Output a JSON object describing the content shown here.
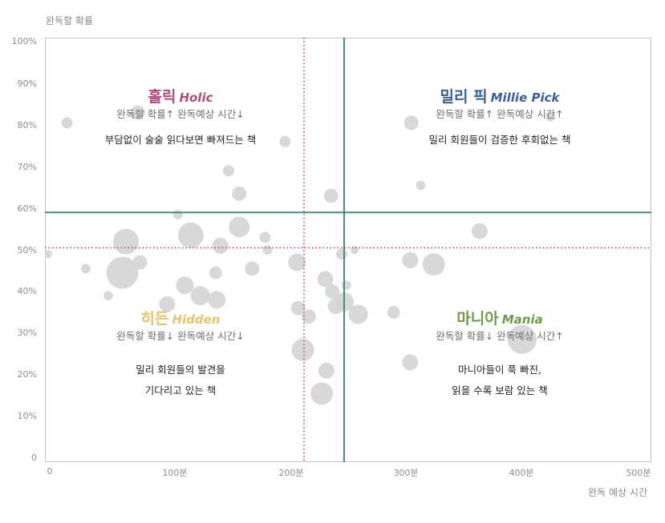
{
  "chart_data": {
    "type": "scatter",
    "subtype": "bubble",
    "title": "",
    "xlabel": "완독 예상 시간",
    "ylabel": "완독할 확률",
    "xlim": [
      0,
      500
    ],
    "ylim": [
      0,
      100
    ],
    "x_ticks": [
      "0",
      "100분",
      "200분",
      "300분",
      "400분",
      "500분"
    ],
    "y_ticks": [
      "0",
      "10%",
      "20%",
      "30%",
      "40%",
      "50%",
      "60%",
      "70%",
      "80%",
      "90%",
      "100%"
    ],
    "grid": false,
    "reference_lines": [
      {
        "orientation": "vertical",
        "value": 251,
        "style": "solid",
        "color": "#4a8a7e"
      },
      {
        "orientation": "horizontal",
        "value": 59,
        "style": "solid",
        "color": "#4a8a7e"
      },
      {
        "orientation": "vertical",
        "value": 217,
        "style": "dotted",
        "color": "#c0394f"
      },
      {
        "orientation": "horizontal",
        "value": 50.5,
        "style": "dotted",
        "color": "#c0394f"
      }
    ],
    "bubble_color": "#d4d4d4",
    "points": [
      {
        "x": 16,
        "y": 80.5,
        "r": 7
      },
      {
        "x": 76,
        "y": 83,
        "r": 9
      },
      {
        "x": 201,
        "y": 76,
        "r": 7
      },
      {
        "x": 153,
        "y": 69,
        "r": 7
      },
      {
        "x": 162,
        "y": 63.5,
        "r": 9
      },
      {
        "x": 110,
        "y": 58.5,
        "r": 6
      },
      {
        "x": 66,
        "y": 52,
        "r": 16
      },
      {
        "x": 121,
        "y": 53.5,
        "r": 16
      },
      {
        "x": 146,
        "y": 51,
        "r": 10
      },
      {
        "x": 162,
        "y": 55.5,
        "r": 13
      },
      {
        "x": 184,
        "y": 53,
        "r": 7
      },
      {
        "x": 186,
        "y": 50,
        "r": 6
      },
      {
        "x": 0,
        "y": 49,
        "r": 5
      },
      {
        "x": 32,
        "y": 45.5,
        "r": 6
      },
      {
        "x": 63,
        "y": 44.5,
        "r": 20
      },
      {
        "x": 78,
        "y": 47,
        "r": 9
      },
      {
        "x": 51,
        "y": 39,
        "r": 6
      },
      {
        "x": 116,
        "y": 41.5,
        "r": 11
      },
      {
        "x": 129,
        "y": 39,
        "r": 12
      },
      {
        "x": 143,
        "y": 38,
        "r": 11
      },
      {
        "x": 101,
        "y": 37,
        "r": 10
      },
      {
        "x": 142,
        "y": 44.5,
        "r": 8
      },
      {
        "x": 173,
        "y": 45.5,
        "r": 9
      },
      {
        "x": 211,
        "y": 47,
        "r": 11
      },
      {
        "x": 235,
        "y": 43,
        "r": 10
      },
      {
        "x": 241,
        "y": 40,
        "r": 9
      },
      {
        "x": 212,
        "y": 36,
        "r": 9
      },
      {
        "x": 221,
        "y": 34,
        "r": 9
      },
      {
        "x": 244,
        "y": 36.5,
        "r": 10
      },
      {
        "x": 251,
        "y": 37.5,
        "r": 12
      },
      {
        "x": 263,
        "y": 34.5,
        "r": 12
      },
      {
        "x": 253,
        "y": 41.5,
        "r": 6
      },
      {
        "x": 240,
        "y": 63,
        "r": 9
      },
      {
        "x": 249,
        "y": 49,
        "r": 7
      },
      {
        "x": 260,
        "y": 50,
        "r": 5
      },
      {
        "x": 293,
        "y": 35,
        "r": 8
      },
      {
        "x": 216,
        "y": 26,
        "r": 14
      },
      {
        "x": 236,
        "y": 21,
        "r": 10
      },
      {
        "x": 232,
        "y": 15.5,
        "r": 14
      },
      {
        "x": 307,
        "y": 47.5,
        "r": 10
      },
      {
        "x": 327,
        "y": 46.5,
        "r": 14
      },
      {
        "x": 307,
        "y": 23,
        "r": 10
      },
      {
        "x": 366,
        "y": 54.5,
        "r": 10
      },
      {
        "x": 402,
        "y": 28.5,
        "r": 18
      },
      {
        "x": 308,
        "y": 80.5,
        "r": 9
      },
      {
        "x": 316,
        "y": 65.5,
        "r": 6
      },
      {
        "x": 426,
        "y": 82,
        "r": 6
      }
    ],
    "quadrants": [
      {
        "position": "top-left",
        "title_ko": "홀릭",
        "title_en": "Holic",
        "color": "#b24b7c"
      },
      {
        "position": "top-right",
        "title_ko": "밀리 픽",
        "title_en": "Millie Pick",
        "color": "#3a5f96"
      },
      {
        "position": "bottom-left",
        "title_ko": "히든",
        "title_en": "Hidden",
        "color": "#e8c26a"
      },
      {
        "position": "bottom-right",
        "title_ko": "마니아",
        "title_en": "Mania",
        "color": "#6f9a4a"
      }
    ]
  },
  "axes": {
    "ylabel": "완독할 확률",
    "xlabel": "완독 예상 시간",
    "y_ticks": [
      "100%",
      "90%",
      "80%",
      "70%",
      "60%",
      "50%",
      "40%",
      "30%",
      "20%",
      "10%",
      "0"
    ],
    "x_ticks": [
      "0",
      "100분",
      "200분",
      "300분",
      "400분",
      "500분"
    ]
  },
  "quadrants": {
    "holic": {
      "title_ko": "홀릭",
      "title_en": "Holic",
      "subtitle": "완독할 확률↑ 완독예상 시간↓",
      "desc1": "부담없이 술술 읽다보면 빠져드는 책",
      "desc2": "",
      "color": "#b24b7c"
    },
    "millie": {
      "title_ko": "밀리 픽",
      "title_en": "Millie Pick",
      "subtitle": "완독할 확률↑ 완독예상 시간↑",
      "desc1": "밀리 회원들이 검증한 후회없는 책",
      "desc2": "",
      "color": "#3a5f96"
    },
    "hidden": {
      "title_ko": "히든",
      "title_en": "Hidden",
      "subtitle": "완독할 확률↓ 완독예상 시간↓",
      "desc1": "밀리 회원들의 발견을",
      "desc2": "기다리고 있는 책",
      "color": "#e8c26a"
    },
    "mania": {
      "title_ko": "마니아",
      "title_en": "Mania",
      "subtitle": "완독할 확률↓ 완독예상 시간↑",
      "desc1": "마니아들이 푹 빠진,",
      "desc2": "읽을 수록 보람 있는 책",
      "color": "#6f9a4a"
    }
  }
}
